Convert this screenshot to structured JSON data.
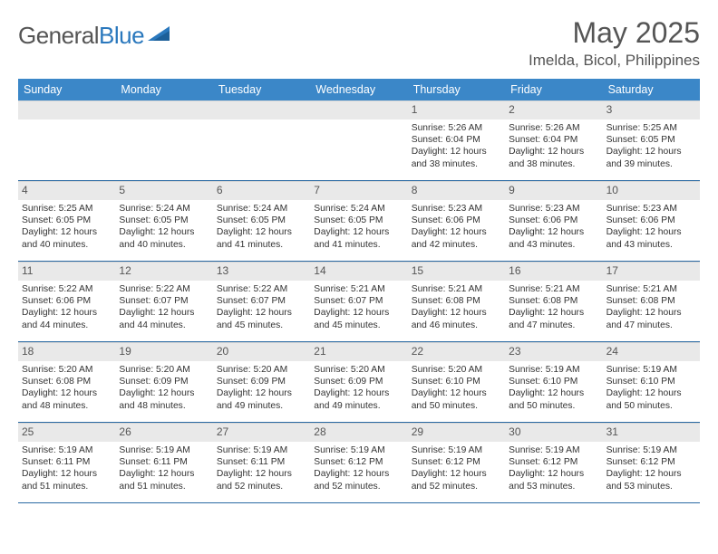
{
  "brand": {
    "part1": "General",
    "part2": "Blue"
  },
  "title": "May 2025",
  "location": "Imelda, Bicol, Philippines",
  "colors": {
    "header_bg": "#3b87c8",
    "header_text": "#ffffff",
    "week_divider": "#2a6aa3",
    "daynum_bg": "#e9e9e9",
    "text": "#333333",
    "brand_blue": "#2a78bd"
  },
  "dow": [
    "Sunday",
    "Monday",
    "Tuesday",
    "Wednesday",
    "Thursday",
    "Friday",
    "Saturday"
  ],
  "weeks": [
    [
      {
        "n": "",
        "sr": "",
        "ss": "",
        "dl": ""
      },
      {
        "n": "",
        "sr": "",
        "ss": "",
        "dl": ""
      },
      {
        "n": "",
        "sr": "",
        "ss": "",
        "dl": ""
      },
      {
        "n": "",
        "sr": "",
        "ss": "",
        "dl": ""
      },
      {
        "n": "1",
        "sr": "Sunrise: 5:26 AM",
        "ss": "Sunset: 6:04 PM",
        "dl": "Daylight: 12 hours and 38 minutes."
      },
      {
        "n": "2",
        "sr": "Sunrise: 5:26 AM",
        "ss": "Sunset: 6:04 PM",
        "dl": "Daylight: 12 hours and 38 minutes."
      },
      {
        "n": "3",
        "sr": "Sunrise: 5:25 AM",
        "ss": "Sunset: 6:05 PM",
        "dl": "Daylight: 12 hours and 39 minutes."
      }
    ],
    [
      {
        "n": "4",
        "sr": "Sunrise: 5:25 AM",
        "ss": "Sunset: 6:05 PM",
        "dl": "Daylight: 12 hours and 40 minutes."
      },
      {
        "n": "5",
        "sr": "Sunrise: 5:24 AM",
        "ss": "Sunset: 6:05 PM",
        "dl": "Daylight: 12 hours and 40 minutes."
      },
      {
        "n": "6",
        "sr": "Sunrise: 5:24 AM",
        "ss": "Sunset: 6:05 PM",
        "dl": "Daylight: 12 hours and 41 minutes."
      },
      {
        "n": "7",
        "sr": "Sunrise: 5:24 AM",
        "ss": "Sunset: 6:05 PM",
        "dl": "Daylight: 12 hours and 41 minutes."
      },
      {
        "n": "8",
        "sr": "Sunrise: 5:23 AM",
        "ss": "Sunset: 6:06 PM",
        "dl": "Daylight: 12 hours and 42 minutes."
      },
      {
        "n": "9",
        "sr": "Sunrise: 5:23 AM",
        "ss": "Sunset: 6:06 PM",
        "dl": "Daylight: 12 hours and 43 minutes."
      },
      {
        "n": "10",
        "sr": "Sunrise: 5:23 AM",
        "ss": "Sunset: 6:06 PM",
        "dl": "Daylight: 12 hours and 43 minutes."
      }
    ],
    [
      {
        "n": "11",
        "sr": "Sunrise: 5:22 AM",
        "ss": "Sunset: 6:06 PM",
        "dl": "Daylight: 12 hours and 44 minutes."
      },
      {
        "n": "12",
        "sr": "Sunrise: 5:22 AM",
        "ss": "Sunset: 6:07 PM",
        "dl": "Daylight: 12 hours and 44 minutes."
      },
      {
        "n": "13",
        "sr": "Sunrise: 5:22 AM",
        "ss": "Sunset: 6:07 PM",
        "dl": "Daylight: 12 hours and 45 minutes."
      },
      {
        "n": "14",
        "sr": "Sunrise: 5:21 AM",
        "ss": "Sunset: 6:07 PM",
        "dl": "Daylight: 12 hours and 45 minutes."
      },
      {
        "n": "15",
        "sr": "Sunrise: 5:21 AM",
        "ss": "Sunset: 6:08 PM",
        "dl": "Daylight: 12 hours and 46 minutes."
      },
      {
        "n": "16",
        "sr": "Sunrise: 5:21 AM",
        "ss": "Sunset: 6:08 PM",
        "dl": "Daylight: 12 hours and 47 minutes."
      },
      {
        "n": "17",
        "sr": "Sunrise: 5:21 AM",
        "ss": "Sunset: 6:08 PM",
        "dl": "Daylight: 12 hours and 47 minutes."
      }
    ],
    [
      {
        "n": "18",
        "sr": "Sunrise: 5:20 AM",
        "ss": "Sunset: 6:08 PM",
        "dl": "Daylight: 12 hours and 48 minutes."
      },
      {
        "n": "19",
        "sr": "Sunrise: 5:20 AM",
        "ss": "Sunset: 6:09 PM",
        "dl": "Daylight: 12 hours and 48 minutes."
      },
      {
        "n": "20",
        "sr": "Sunrise: 5:20 AM",
        "ss": "Sunset: 6:09 PM",
        "dl": "Daylight: 12 hours and 49 minutes."
      },
      {
        "n": "21",
        "sr": "Sunrise: 5:20 AM",
        "ss": "Sunset: 6:09 PM",
        "dl": "Daylight: 12 hours and 49 minutes."
      },
      {
        "n": "22",
        "sr": "Sunrise: 5:20 AM",
        "ss": "Sunset: 6:10 PM",
        "dl": "Daylight: 12 hours and 50 minutes."
      },
      {
        "n": "23",
        "sr": "Sunrise: 5:19 AM",
        "ss": "Sunset: 6:10 PM",
        "dl": "Daylight: 12 hours and 50 minutes."
      },
      {
        "n": "24",
        "sr": "Sunrise: 5:19 AM",
        "ss": "Sunset: 6:10 PM",
        "dl": "Daylight: 12 hours and 50 minutes."
      }
    ],
    [
      {
        "n": "25",
        "sr": "Sunrise: 5:19 AM",
        "ss": "Sunset: 6:11 PM",
        "dl": "Daylight: 12 hours and 51 minutes."
      },
      {
        "n": "26",
        "sr": "Sunrise: 5:19 AM",
        "ss": "Sunset: 6:11 PM",
        "dl": "Daylight: 12 hours and 51 minutes."
      },
      {
        "n": "27",
        "sr": "Sunrise: 5:19 AM",
        "ss": "Sunset: 6:11 PM",
        "dl": "Daylight: 12 hours and 52 minutes."
      },
      {
        "n": "28",
        "sr": "Sunrise: 5:19 AM",
        "ss": "Sunset: 6:12 PM",
        "dl": "Daylight: 12 hours and 52 minutes."
      },
      {
        "n": "29",
        "sr": "Sunrise: 5:19 AM",
        "ss": "Sunset: 6:12 PM",
        "dl": "Daylight: 12 hours and 52 minutes."
      },
      {
        "n": "30",
        "sr": "Sunrise: 5:19 AM",
        "ss": "Sunset: 6:12 PM",
        "dl": "Daylight: 12 hours and 53 minutes."
      },
      {
        "n": "31",
        "sr": "Sunrise: 5:19 AM",
        "ss": "Sunset: 6:12 PM",
        "dl": "Daylight: 12 hours and 53 minutes."
      }
    ]
  ]
}
